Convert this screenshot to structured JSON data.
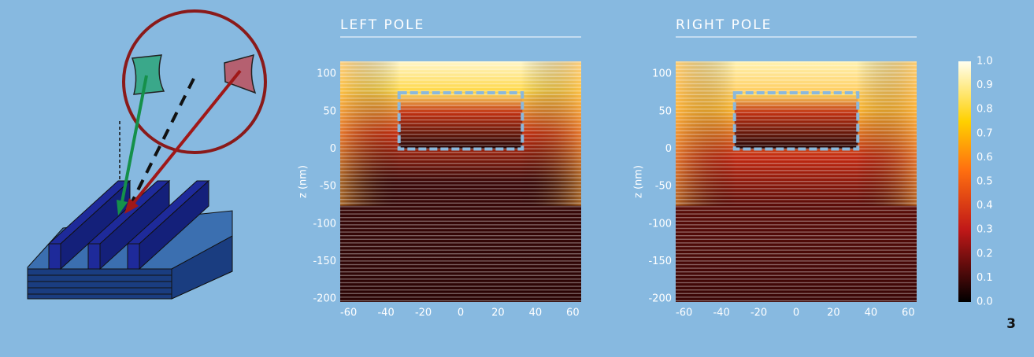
{
  "panels": [
    {
      "title": "LEFT POLE",
      "y_label": "z (nm)",
      "x_range": [
        -64.5,
        64.5
      ],
      "z_range": [
        -204,
        117
      ],
      "x_ticks": [
        -60,
        -40,
        -20,
        0,
        20,
        40,
        60
      ],
      "z_ticks": [
        100,
        50,
        0,
        -50,
        -100,
        -150,
        -200
      ]
    },
    {
      "title": "RIGHT POLE",
      "y_label": "z (nm)",
      "x_range": [
        -64.5,
        64.5
      ],
      "z_range": [
        -204,
        117
      ],
      "x_ticks": [
        -60,
        -40,
        -20,
        0,
        20,
        40,
        60
      ],
      "z_ticks": [
        100,
        50,
        0,
        -50,
        -100,
        -150,
        -200
      ]
    }
  ],
  "colorbar": {
    "range": [
      0,
      1
    ],
    "ticks": [
      {
        "value": 0,
        "label": "0.0"
      },
      {
        "value": 0.1,
        "label": "0.1"
      },
      {
        "value": 0.2,
        "label": "0.2"
      },
      {
        "value": 0.3,
        "label": "0.3"
      },
      {
        "value": 0.4,
        "label": "0.4"
      },
      {
        "value": 0.5,
        "label": "0.5"
      },
      {
        "value": 0.6,
        "label": "0.6"
      },
      {
        "value": 0.7,
        "label": "0.7"
      },
      {
        "value": 0.8,
        "label": "0.8"
      },
      {
        "value": 0.9,
        "label": "0.9"
      },
      {
        "value": 1,
        "label": "1.0"
      }
    ]
  },
  "page_number": "3"
}
